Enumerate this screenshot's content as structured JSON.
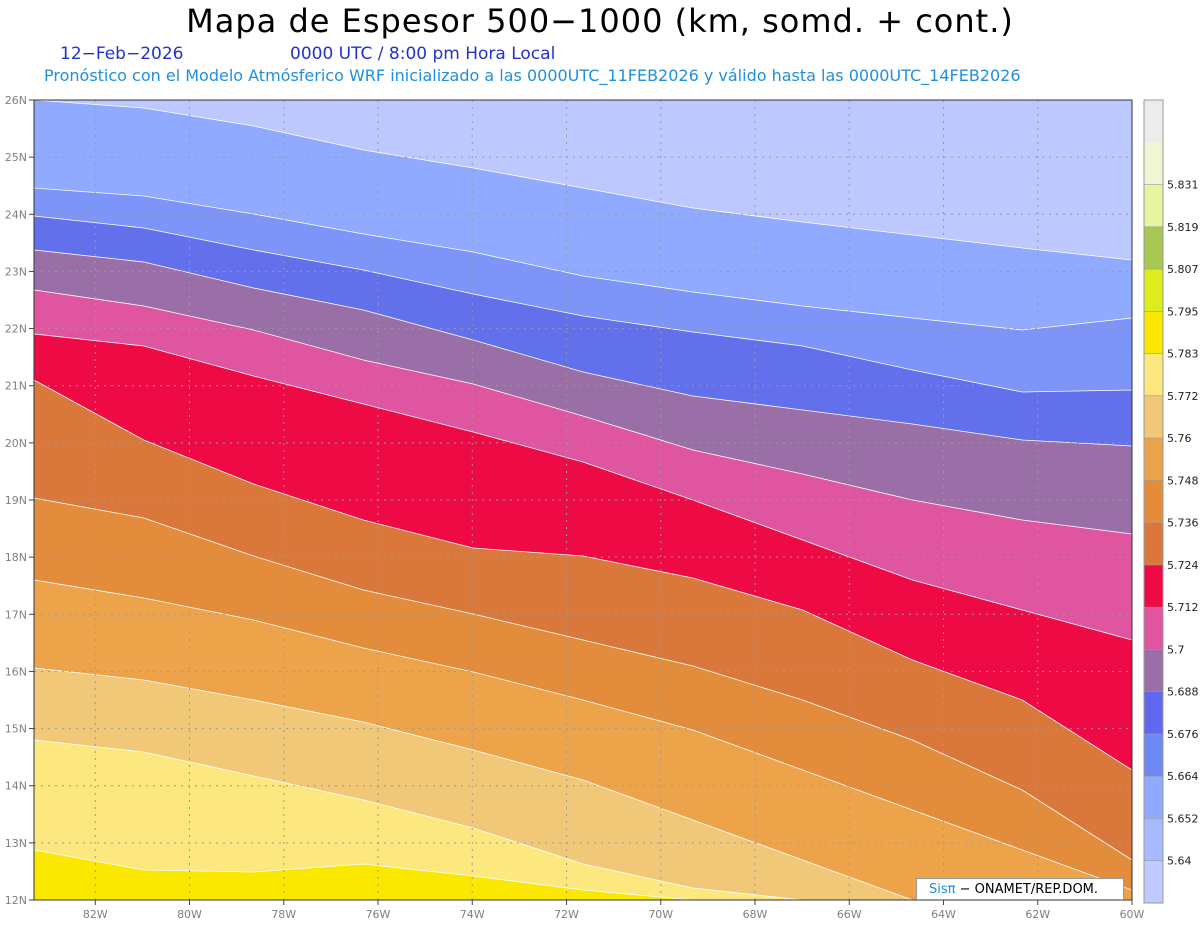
{
  "header": {
    "title": "Mapa de Espesor 500−1000 (km, somd. + cont.)",
    "date": "12−Feb−2026",
    "time": "0000 UTC / 8:00 pm Hora Local",
    "forecast": "Pronóstico con el Modelo Atmósferico WRF inicializado a las 0000UTC_11FEB2026 y válido hasta las  0000UTC_14FEB2026"
  },
  "map": {
    "lon_range": [
      -83.3,
      -60
    ],
    "lat_range": [
      12,
      26
    ],
    "lat_ticks": [
      "12N",
      "13N",
      "14N",
      "15N",
      "16N",
      "17N",
      "18N",
      "19N",
      "20N",
      "21N",
      "22N",
      "23N",
      "24N",
      "25N",
      "26N"
    ],
    "lon_ticks": [
      "82W",
      "80W",
      "78W",
      "76W",
      "74W",
      "72W",
      "70W",
      "68W",
      "66W",
      "64W",
      "62W",
      "60W"
    ],
    "grid": true
  },
  "colorbar": {
    "levels": [
      "5.64",
      "5.652",
      "5.664",
      "5.676",
      "5.688",
      "5.7",
      "5.712",
      "5.724",
      "5.736",
      "5.748",
      "5.76",
      "5.772",
      "5.783",
      "5.795",
      "5.807",
      "5.819",
      "5.831"
    ],
    "colors": [
      "#bfcbff",
      "#a8baff",
      "#8faaff",
      "#6e88f6",
      "#6068f0",
      "#9a6fa8",
      "#e055a0",
      "#ee0a44",
      "#dc773a",
      "#e48c3c",
      "#eaa24c",
      "#f0c878",
      "#fde880",
      "#fae800",
      "#dcec1c",
      "#a8c854",
      "#e8f4a0",
      "#f0f6d4",
      "#ececec"
    ]
  },
  "credit": {
    "sis": "Sisπ",
    "org": "− ONAMET/REP.DOM."
  }
}
